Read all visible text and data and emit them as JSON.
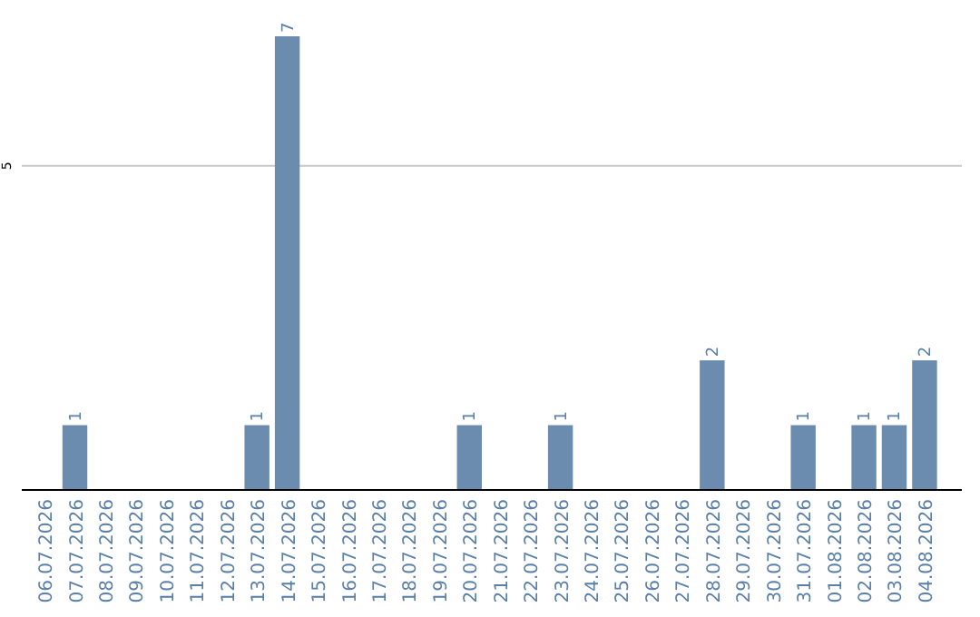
{
  "chart_data": {
    "type": "bar",
    "categories": [
      "06.07.2026",
      "07.07.2026",
      "08.07.2026",
      "09.07.2026",
      "10.07.2026",
      "11.07.2026",
      "12.07.2026",
      "13.07.2026",
      "14.07.2026",
      "15.07.2026",
      "16.07.2026",
      "17.07.2026",
      "18.07.2026",
      "19.07.2026",
      "20.07.2026",
      "21.07.2026",
      "22.07.2026",
      "23.07.2026",
      "24.07.2026",
      "25.07.2026",
      "26.07.2026",
      "27.07.2026",
      "28.07.2026",
      "29.07.2026",
      "30.07.2026",
      "31.07.2026",
      "01.08.2026",
      "02.08.2026",
      "03.08.2026",
      "04.08.2026"
    ],
    "values": [
      0,
      1,
      0,
      0,
      0,
      0,
      0,
      1,
      7,
      0,
      0,
      0,
      0,
      0,
      1,
      0,
      0,
      1,
      0,
      0,
      0,
      0,
      2,
      0,
      0,
      1,
      0,
      1,
      1,
      2
    ],
    "value_labels": [
      null,
      "1",
      null,
      null,
      null,
      null,
      null,
      "1",
      "7",
      null,
      null,
      null,
      null,
      null,
      "1",
      null,
      null,
      "1",
      null,
      null,
      null,
      null,
      "2",
      null,
      null,
      "1",
      null,
      "1",
      "1",
      "2"
    ],
    "color": "#6b8cae",
    "ylim": [
      0,
      7
    ],
    "yticks": [
      5
    ],
    "grid": "y"
  }
}
